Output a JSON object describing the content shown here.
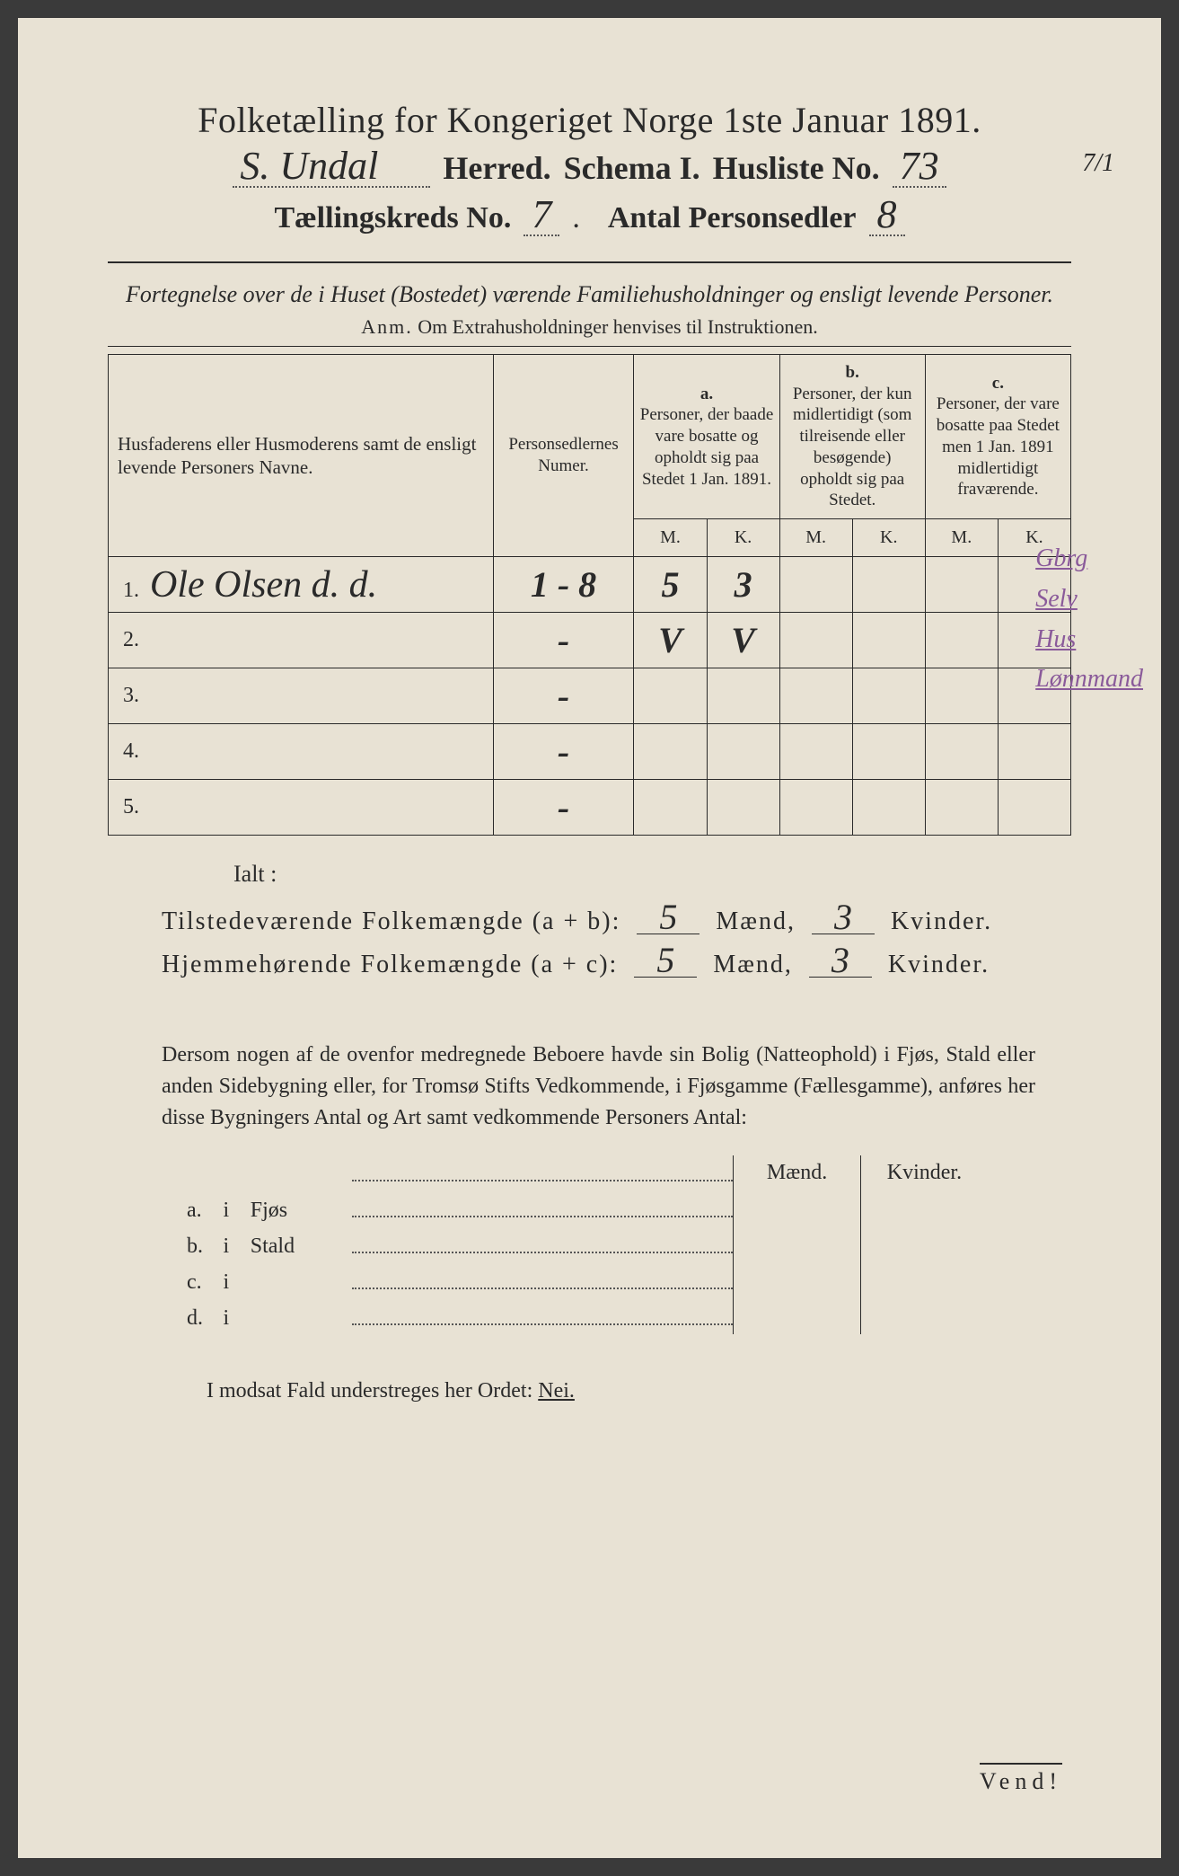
{
  "header": {
    "title": "Folketælling for Kongeriget Norge 1ste Januar 1891.",
    "herred_value": "S. Undal",
    "herred_label": "Herred.",
    "schema_label": "Schema I.",
    "husliste_label": "Husliste No.",
    "husliste_value": "73",
    "corner_fraction": "7/1",
    "kreds_label": "Tællingskreds No.",
    "kreds_value": "7",
    "sedler_label": "Antal Personsedler",
    "sedler_value": "8"
  },
  "subtitle": "Fortegnelse over de i Huset (Bostedet) værende Familiehusholdninger og ensligt levende Personer.",
  "anm_prefix": "Anm.",
  "anm_text": "Om Extrahusholdninger henvises til Instruktionen.",
  "table": {
    "col_name": "Husfaderens eller Husmoderens samt de ensligt levende Personers Navne.",
    "col_num": "Personsedlernes Numer.",
    "col_a_label": "a.",
    "col_a_text": "Personer, der baade vare bosatte og opholdt sig paa Stedet 1 Jan. 1891.",
    "col_b_label": "b.",
    "col_b_text": "Personer, der kun midlertidigt (som tilreisende eller besøgende) opholdt sig paa Stedet.",
    "col_c_label": "c.",
    "col_c_text": "Personer, der vare bosatte paa Stedet men 1 Jan. 1891 midlertidigt fraværende.",
    "m": "M.",
    "k": "K.",
    "rows": [
      {
        "n": "1.",
        "name": "Ole Olsen d. d.",
        "num": "1 - 8",
        "aM": "5",
        "aK": "3",
        "bM": "",
        "bK": "",
        "cM": "",
        "cK": ""
      },
      {
        "n": "2.",
        "name": "",
        "num": "-",
        "aM": "V",
        "aK": "V",
        "bM": "",
        "bK": "",
        "cM": "",
        "cK": ""
      },
      {
        "n": "3.",
        "name": "",
        "num": "-",
        "aM": "",
        "aK": "",
        "bM": "",
        "bK": "",
        "cM": "",
        "cK": ""
      },
      {
        "n": "4.",
        "name": "",
        "num": "-",
        "aM": "",
        "aK": "",
        "bM": "",
        "bK": "",
        "cM": "",
        "cK": ""
      },
      {
        "n": "5.",
        "name": "",
        "num": "-",
        "aM": "",
        "aK": "",
        "bM": "",
        "bK": "",
        "cM": "",
        "cK": ""
      }
    ]
  },
  "margin_notes": [
    "Gbrg",
    "Selv",
    "Hus",
    "Lønnmand"
  ],
  "ialt": "Ialt :",
  "totals": {
    "line1_label": "Tilstedeværende Folkemængde (a + b):",
    "line2_label": "Hjemmehørende Folkemængde (a + c):",
    "maend": "Mænd,",
    "kvinder": "Kvinder.",
    "t_m": "5",
    "t_k": "3",
    "h_m": "5",
    "h_k": "3"
  },
  "body_para": "Dersom nogen af de ovenfor medregnede Beboere havde sin Bolig (Natteophold) i Fjøs, Stald eller anden Sidebygning eller, for Tromsø Stifts Vedkommende, i Fjøsgamme (Fællesgamme), anføres her disse Bygningers Antal og Art samt vedkommende Personers Antal:",
  "outbld": {
    "hdr_m": "Mænd.",
    "hdr_k": "Kvinder.",
    "rows": [
      {
        "lab": "a.",
        "i": "i",
        "nm": "Fjøs"
      },
      {
        "lab": "b.",
        "i": "i",
        "nm": "Stald"
      },
      {
        "lab": "c.",
        "i": "i",
        "nm": ""
      },
      {
        "lab": "d.",
        "i": "i",
        "nm": ""
      }
    ]
  },
  "nei_line_prefix": "I modsat Fald understreges her Ordet:",
  "nei_word": "Nei.",
  "vend": "Vend!"
}
